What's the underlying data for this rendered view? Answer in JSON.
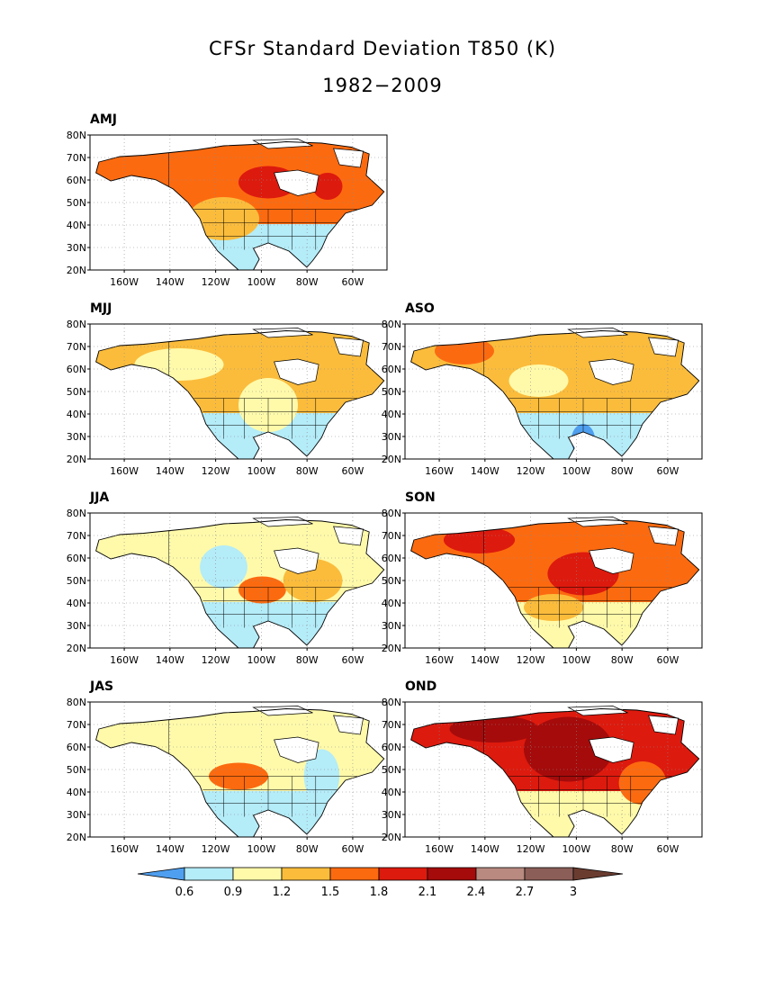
{
  "title_line1": "CFSr Standard Deviation T850 (K)",
  "title_line2": "1982−2009",
  "y_ticks": [
    "80N",
    "70N",
    "60N",
    "50N",
    "40N",
    "30N",
    "20N"
  ],
  "x_ticks": [
    "160W",
    "140W",
    "120W",
    "100W",
    "80W",
    "60W"
  ],
  "colors": {
    "lt_0.6": "#4f9ff0",
    "0.6-0.9": "#b4ecf8",
    "0.9-1.2": "#fffaaa",
    "1.2-1.5": "#fbbc3c",
    "1.5-1.8": "#fc6a10",
    "1.8-2.1": "#dd1a0e",
    "2.1-2.4": "#a50b0b",
    "2.4-2.7": "#b88a80",
    "2.7-3": "#8c5e58",
    "gt_3": "#6a3c30",
    "ocean": "#ffffff",
    "coast": "#000000"
  },
  "colorbar": {
    "labels": [
      "0.6",
      "0.9",
      "1.2",
      "1.5",
      "1.8",
      "2.1",
      "2.4",
      "2.7",
      "3"
    ]
  },
  "panels": [
    {
      "id": "amj",
      "label": "AMJ",
      "base": "1.5-1.8",
      "south": "0.6-0.9",
      "patches": [
        [
          "1.8-2.1",
          0.6,
          0.35,
          0.1,
          0.06
        ],
        [
          "1.2-1.5",
          0.45,
          0.62,
          0.12,
          0.08
        ],
        [
          "1.8-2.1",
          0.8,
          0.38,
          0.05,
          0.05
        ]
      ]
    },
    {
      "id": "mjj",
      "label": "MJJ",
      "base": "1.2-1.5",
      "south": "0.6-0.9",
      "patches": [
        [
          "0.9-1.2",
          0.3,
          0.3,
          0.15,
          0.06
        ],
        [
          "0.9-1.2",
          0.6,
          0.6,
          0.1,
          0.1
        ]
      ]
    },
    {
      "id": "aso",
      "label": "ASO",
      "base": "1.2-1.5",
      "south": "0.6-0.9",
      "patches": [
        [
          "0.9-1.2",
          0.45,
          0.42,
          0.1,
          0.06
        ],
        [
          "lt_0.6",
          0.6,
          0.86,
          0.04,
          0.06
        ],
        [
          "1.5-1.8",
          0.2,
          0.2,
          0.1,
          0.05
        ]
      ]
    },
    {
      "id": "jja",
      "label": "JJA",
      "base": "0.9-1.2",
      "south": "0.6-0.9",
      "patches": [
        [
          "0.6-0.9",
          0.45,
          0.4,
          0.08,
          0.08
        ],
        [
          "1.5-1.8",
          0.58,
          0.57,
          0.08,
          0.05
        ],
        [
          "1.2-1.5",
          0.75,
          0.5,
          0.1,
          0.08
        ]
      ]
    },
    {
      "id": "son",
      "label": "SON",
      "base": "1.5-1.8",
      "south": "0.9-1.2",
      "patches": [
        [
          "1.8-2.1",
          0.6,
          0.45,
          0.12,
          0.08
        ],
        [
          "1.8-2.1",
          0.25,
          0.2,
          0.12,
          0.05
        ],
        [
          "1.2-1.5",
          0.5,
          0.7,
          0.1,
          0.05
        ]
      ]
    },
    {
      "id": "jas",
      "label": "JAS",
      "base": "0.9-1.2",
      "south": "0.6-0.9",
      "patches": [
        [
          "1.5-1.8",
          0.5,
          0.55,
          0.1,
          0.05
        ],
        [
          "0.6-0.9",
          0.78,
          0.55,
          0.06,
          0.1
        ]
      ]
    },
    {
      "id": "ond",
      "label": "OND",
      "base": "1.8-2.1",
      "south": "0.9-1.2",
      "patches": [
        [
          "2.1-2.4",
          0.55,
          0.35,
          0.15,
          0.12
        ],
        [
          "2.1-2.4",
          0.3,
          0.2,
          0.15,
          0.05
        ],
        [
          "1.5-1.8",
          0.8,
          0.6,
          0.08,
          0.08
        ]
      ]
    }
  ]
}
